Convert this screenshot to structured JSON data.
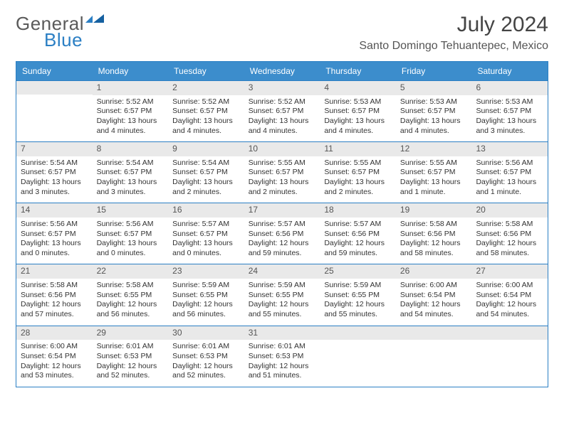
{
  "logo": {
    "text1": "General",
    "text2": "Blue"
  },
  "title": "July 2024",
  "location": "Santo Domingo Tehuantepec, Mexico",
  "colors": {
    "header_bg": "#3c8dcc",
    "header_text": "#ffffff",
    "border": "#2b7fc4",
    "daynum_bg": "#e9e9e9",
    "text": "#333333",
    "logo_gray": "#5a5a5a",
    "logo_blue": "#2b7fc4"
  },
  "daysOfWeek": [
    "Sunday",
    "Monday",
    "Tuesday",
    "Wednesday",
    "Thursday",
    "Friday",
    "Saturday"
  ],
  "startOffset": 1,
  "daysInMonth": 31,
  "days": {
    "1": {
      "sunrise": "5:52 AM",
      "sunset": "6:57 PM",
      "daylight": "13 hours and 4 minutes."
    },
    "2": {
      "sunrise": "5:52 AM",
      "sunset": "6:57 PM",
      "daylight": "13 hours and 4 minutes."
    },
    "3": {
      "sunrise": "5:52 AM",
      "sunset": "6:57 PM",
      "daylight": "13 hours and 4 minutes."
    },
    "4": {
      "sunrise": "5:53 AM",
      "sunset": "6:57 PM",
      "daylight": "13 hours and 4 minutes."
    },
    "5": {
      "sunrise": "5:53 AM",
      "sunset": "6:57 PM",
      "daylight": "13 hours and 4 minutes."
    },
    "6": {
      "sunrise": "5:53 AM",
      "sunset": "6:57 PM",
      "daylight": "13 hours and 3 minutes."
    },
    "7": {
      "sunrise": "5:54 AM",
      "sunset": "6:57 PM",
      "daylight": "13 hours and 3 minutes."
    },
    "8": {
      "sunrise": "5:54 AM",
      "sunset": "6:57 PM",
      "daylight": "13 hours and 3 minutes."
    },
    "9": {
      "sunrise": "5:54 AM",
      "sunset": "6:57 PM",
      "daylight": "13 hours and 2 minutes."
    },
    "10": {
      "sunrise": "5:55 AM",
      "sunset": "6:57 PM",
      "daylight": "13 hours and 2 minutes."
    },
    "11": {
      "sunrise": "5:55 AM",
      "sunset": "6:57 PM",
      "daylight": "13 hours and 2 minutes."
    },
    "12": {
      "sunrise": "5:55 AM",
      "sunset": "6:57 PM",
      "daylight": "13 hours and 1 minute."
    },
    "13": {
      "sunrise": "5:56 AM",
      "sunset": "6:57 PM",
      "daylight": "13 hours and 1 minute."
    },
    "14": {
      "sunrise": "5:56 AM",
      "sunset": "6:57 PM",
      "daylight": "13 hours and 0 minutes."
    },
    "15": {
      "sunrise": "5:56 AM",
      "sunset": "6:57 PM",
      "daylight": "13 hours and 0 minutes."
    },
    "16": {
      "sunrise": "5:57 AM",
      "sunset": "6:57 PM",
      "daylight": "13 hours and 0 minutes."
    },
    "17": {
      "sunrise": "5:57 AM",
      "sunset": "6:56 PM",
      "daylight": "12 hours and 59 minutes."
    },
    "18": {
      "sunrise": "5:57 AM",
      "sunset": "6:56 PM",
      "daylight": "12 hours and 59 minutes."
    },
    "19": {
      "sunrise": "5:58 AM",
      "sunset": "6:56 PM",
      "daylight": "12 hours and 58 minutes."
    },
    "20": {
      "sunrise": "5:58 AM",
      "sunset": "6:56 PM",
      "daylight": "12 hours and 58 minutes."
    },
    "21": {
      "sunrise": "5:58 AM",
      "sunset": "6:56 PM",
      "daylight": "12 hours and 57 minutes."
    },
    "22": {
      "sunrise": "5:58 AM",
      "sunset": "6:55 PM",
      "daylight": "12 hours and 56 minutes."
    },
    "23": {
      "sunrise": "5:59 AM",
      "sunset": "6:55 PM",
      "daylight": "12 hours and 56 minutes."
    },
    "24": {
      "sunrise": "5:59 AM",
      "sunset": "6:55 PM",
      "daylight": "12 hours and 55 minutes."
    },
    "25": {
      "sunrise": "5:59 AM",
      "sunset": "6:55 PM",
      "daylight": "12 hours and 55 minutes."
    },
    "26": {
      "sunrise": "6:00 AM",
      "sunset": "6:54 PM",
      "daylight": "12 hours and 54 minutes."
    },
    "27": {
      "sunrise": "6:00 AM",
      "sunset": "6:54 PM",
      "daylight": "12 hours and 54 minutes."
    },
    "28": {
      "sunrise": "6:00 AM",
      "sunset": "6:54 PM",
      "daylight": "12 hours and 53 minutes."
    },
    "29": {
      "sunrise": "6:01 AM",
      "sunset": "6:53 PM",
      "daylight": "12 hours and 52 minutes."
    },
    "30": {
      "sunrise": "6:01 AM",
      "sunset": "6:53 PM",
      "daylight": "12 hours and 52 minutes."
    },
    "31": {
      "sunrise": "6:01 AM",
      "sunset": "6:53 PM",
      "daylight": "12 hours and 51 minutes."
    }
  },
  "labels": {
    "sunrise": "Sunrise:",
    "sunset": "Sunset:",
    "daylight": "Daylight:"
  }
}
